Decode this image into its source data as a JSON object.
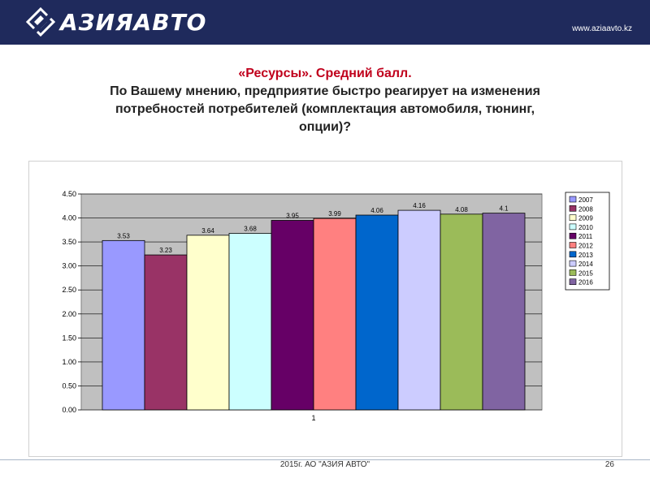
{
  "header": {
    "logo_text": "АЗИЯАВТО",
    "site_url": "www.aziaavto.kz",
    "logo_icon": "diamond-logo-icon",
    "background_color": "#1f2a5c"
  },
  "title": {
    "line1": "«Ресурсы». Средний балл.",
    "line2": "По Вашему мнению, предприятие быстро реагирует на изменения",
    "line3": "потребностей потребителей (комплектация автомобиля, тюнинг,",
    "line4": "опции)?"
  },
  "chart_data": {
    "type": "bar",
    "categories": [
      "1"
    ],
    "ylim": [
      0,
      4.5
    ],
    "yticks": [
      "0.00",
      "0.50",
      "1.00",
      "1.50",
      "2.00",
      "2.50",
      "3.00",
      "3.50",
      "4.00",
      "4.50"
    ],
    "grid": true,
    "plot_background": "#c0c0c0",
    "legend_position": "right",
    "series": [
      {
        "name": "2007",
        "values": [
          3.53
        ],
        "label": "3.53",
        "color": "#9999ff"
      },
      {
        "name": "2008",
        "values": [
          3.23
        ],
        "label": "3.23",
        "color": "#993366"
      },
      {
        "name": "2009",
        "values": [
          3.64
        ],
        "label": "3.64",
        "color": "#ffffcc"
      },
      {
        "name": "2010",
        "values": [
          3.68
        ],
        "label": "3.68",
        "color": "#ccffff"
      },
      {
        "name": "2011",
        "values": [
          3.95
        ],
        "label": "3.95",
        "color": "#660066"
      },
      {
        "name": "2012",
        "values": [
          3.99
        ],
        "label": "3.99",
        "color": "#ff8080"
      },
      {
        "name": "2013",
        "values": [
          4.06
        ],
        "label": "4.06",
        "color": "#0066cc"
      },
      {
        "name": "2014",
        "values": [
          4.16
        ],
        "label": "4.16",
        "color": "#ccccff"
      },
      {
        "name": "2015",
        "values": [
          4.08
        ],
        "label": "4.08",
        "color": "#9bbb59"
      },
      {
        "name": "2016",
        "values": [
          4.1
        ],
        "label": "4.1",
        "color": "#8064a2"
      }
    ]
  },
  "footer": {
    "text": "2015г. АО \"АЗИЯ АВТО\"",
    "page_number": "26"
  }
}
